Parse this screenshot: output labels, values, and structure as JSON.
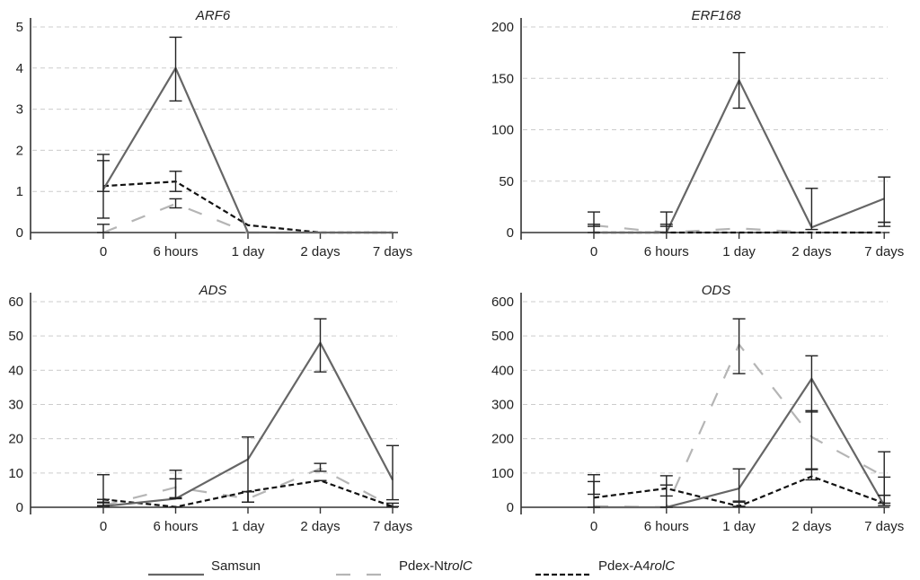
{
  "chart_data": [
    {
      "type": "line",
      "title": "ARF6",
      "categories": [
        "0",
        "6 hours",
        "1 day",
        "2 days",
        "7 days"
      ],
      "ylim": [
        0,
        5
      ],
      "yticks": [
        "0",
        "1",
        "2",
        "3",
        "4",
        "5"
      ],
      "grid": true,
      "series": [
        {
          "name": "Samsun",
          "values": [
            1.05,
            4.0,
            0.0,
            0.0,
            0.0
          ],
          "err": [
            [
              0.35,
              1.75
            ],
            [
              3.2,
              4.75
            ],
            null,
            null,
            null
          ]
        },
        {
          "name": "Pdex-NtrolC",
          "values": [
            0.0,
            0.7,
            0.0,
            0.0,
            0.0
          ],
          "err": [
            [
              0.0,
              0.2
            ],
            [
              0.6,
              0.82
            ],
            null,
            null,
            null
          ]
        },
        {
          "name": "Pdex-A4rolC",
          "values": [
            1.13,
            1.24,
            0.18,
            0.0,
            0.0
          ],
          "err": [
            [
              1.0,
              1.9
            ],
            [
              1.0,
              1.49
            ],
            null,
            null,
            null
          ]
        }
      ]
    },
    {
      "type": "line",
      "title": "ERF168",
      "categories": [
        "0",
        "6 hours",
        "1 day",
        "2 days",
        "7 days"
      ],
      "ylim": [
        0,
        200
      ],
      "yticks": [
        "0",
        "50",
        "100",
        "150",
        "200"
      ],
      "grid": true,
      "series": [
        {
          "name": "Samsun",
          "values": [
            0,
            0,
            148,
            5,
            33
          ],
          "err": [
            null,
            null,
            [
              121,
              175
            ],
            [
              3,
              43
            ],
            [
              10,
              54
            ]
          ]
        },
        {
          "name": "Pdex-NtrolC",
          "values": [
            7,
            0,
            4,
            0,
            0
          ],
          "err": [
            [
              6,
              20
            ],
            [
              6,
              20
            ],
            null,
            null,
            [
              6,
              10
            ]
          ]
        },
        {
          "name": "Pdex-A4rolC",
          "values": [
            0,
            0,
            0,
            0,
            0
          ],
          "err": [
            [
              0,
              8
            ],
            [
              0,
              8
            ],
            null,
            null,
            null
          ]
        }
      ]
    },
    {
      "type": "line",
      "title": "ADS",
      "categories": [
        "0",
        "6 hours",
        "1 day",
        "2 days",
        "7 days"
      ],
      "ylim": [
        0,
        60
      ],
      "yticks": [
        "0",
        "10",
        "20",
        "30",
        "40",
        "50",
        "60"
      ],
      "grid": true,
      "series": [
        {
          "name": "Samsun",
          "values": [
            0.3,
            2.5,
            14,
            48,
            8
          ],
          "err": [
            [
              0.3,
              9.5
            ],
            [
              2.5,
              10.8
            ],
            [
              1.5,
              20.5
            ],
            [
              39.5,
              55
            ],
            [
              2.2,
              18
            ]
          ]
        },
        {
          "name": "Pdex-NtrolC",
          "values": [
            0.5,
            5.8,
            2.5,
            11.3,
            0.2
          ],
          "err": [
            [
              0.5,
              1.5
            ],
            [
              2.8,
              8.3
            ],
            [
              1.5,
              4.5
            ],
            [
              10.5,
              12.8
            ],
            [
              0.2,
              1.2
            ]
          ]
        },
        {
          "name": "Pdex-A4rolC",
          "values": [
            2.3,
            0.1,
            4.6,
            7.8,
            0.2
          ],
          "err": [
            [
              1.3,
              2.3
            ],
            [
              0.1,
              0.1
            ],
            [
              1.5,
              4.6
            ],
            [
              7.8,
              7.8
            ],
            [
              0.2,
              0.2
            ]
          ]
        }
      ]
    },
    {
      "type": "line",
      "title": "ODS",
      "categories": [
        "0",
        "6 hours",
        "1 day",
        "2 days",
        "7 days"
      ],
      "ylim": [
        0,
        600
      ],
      "yticks": [
        "0",
        "100",
        "200",
        "300",
        "400",
        "500",
        "600"
      ],
      "grid": true,
      "series": [
        {
          "name": "Samsun",
          "values": [
            0,
            0,
            55,
            375,
            5
          ],
          "err": [
            [
              0,
              95
            ],
            [
              0,
              92
            ],
            [
              15,
              112
            ],
            [
              278,
              442
            ],
            [
              5,
              162
            ]
          ]
        },
        {
          "name": "Pdex-NtrolC",
          "values": [
            3,
            0,
            475,
            205,
            90
          ],
          "err": [
            null,
            null,
            [
              390,
              550
            ],
            [
              110,
              282
            ],
            [
              35,
              88
            ]
          ]
        },
        {
          "name": "Pdex-A4rolC",
          "values": [
            28,
            55,
            3,
            90,
            12
          ],
          "err": [
            [
              38,
              75
            ],
            [
              33,
              65
            ],
            [
              3,
              18
            ],
            [
              80,
              112
            ],
            [
              12,
              35
            ]
          ]
        }
      ]
    }
  ],
  "legend": {
    "position": "bottom",
    "items": [
      {
        "label_main": "Samsun",
        "label_italic": "",
        "style": "solid",
        "color": "#666666"
      },
      {
        "label_main": "Pdex-Nt",
        "label_italic": "rolC",
        "style": "long-dash",
        "color": "#b5b5b5"
      },
      {
        "label_main": "Pdex-A4",
        "label_italic": "rolC",
        "style": "short-dash",
        "color": "#111111"
      }
    ]
  },
  "colors": {
    "axis": "#333333",
    "grid": "#cccccc",
    "error_bar": "#222222"
  }
}
